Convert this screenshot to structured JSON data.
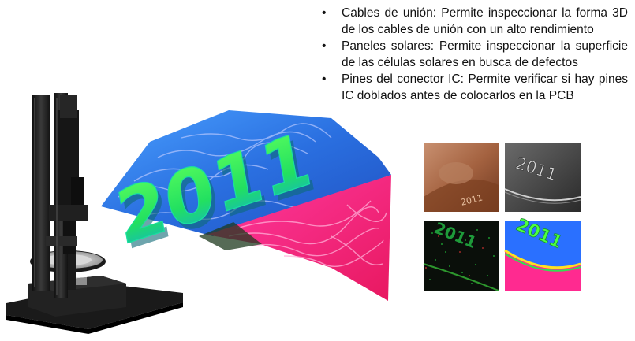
{
  "bullets": [
    {
      "text": "Cables de unión: Permite inspeccionar la forma 3D de los cables de unión con un alto rendimiento"
    },
    {
      "text": "Paneles solares: Permite inspeccionar la superficie de las células solares en busca de defectos"
    },
    {
      "text": "Pines del conector IC: Permite verificar si hay pines IC doblados antes de colocarlos en la PCB"
    }
  ],
  "surface": {
    "engraved_number": "2011"
  },
  "thumbnails": [
    {
      "label": "2011",
      "style": "copper-coin-photo"
    },
    {
      "label": "2011",
      "style": "grayscale-edge"
    },
    {
      "label": "2011",
      "style": "dark-green-noise"
    },
    {
      "label": "2011",
      "style": "false-color-height"
    }
  ],
  "colors": {
    "surface_blue": "#2a6fe0",
    "surface_green": "#3cff3c",
    "surface_pink": "#ff2a80",
    "microscope_black": "#141414"
  }
}
